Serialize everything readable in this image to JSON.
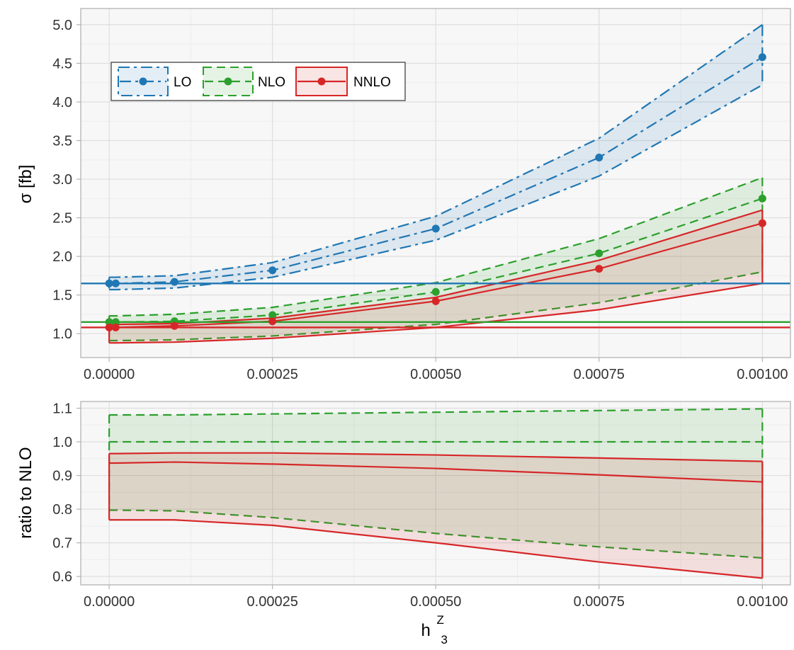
{
  "chart_data": [
    {
      "type": "line",
      "panel": "top",
      "ylabel": "σ [fb]",
      "xlim": [
        -4.35e-05,
        0.001043
      ],
      "ylim": [
        0.69,
        5.21
      ],
      "x_ticks": [
        0.0,
        0.00025,
        0.0005,
        0.00075,
        0.001
      ],
      "x_tick_labels": [
        "0.00000",
        "0.00025",
        "0.00050",
        "0.00075",
        "0.00100"
      ],
      "y_ticks": [
        1.0,
        1.5,
        2.0,
        2.5,
        3.0,
        3.5,
        4.0,
        4.5,
        5.0
      ],
      "y_tick_labels": [
        "1.0",
        "1.5",
        "2.0",
        "2.5",
        "3.0",
        "3.5",
        "4.0",
        "4.5",
        "5.0"
      ],
      "grid": true,
      "legend": {
        "position": "top-left",
        "entries": [
          "LO",
          "NLO",
          "NNLO"
        ]
      },
      "x": [
        0.0,
        1e-05,
        0.0001,
        0.00025,
        0.0005,
        0.00075,
        0.001
      ],
      "series": [
        {
          "name": "LO",
          "color": "#1f77b4",
          "line_style": "dashdot",
          "central": [
            1.65,
            1.65,
            1.67,
            1.82,
            2.36,
            3.28,
            4.58
          ],
          "band_upper": [
            1.73,
            1.73,
            1.75,
            1.92,
            2.52,
            3.53,
            5.0
          ],
          "band_lower": [
            1.57,
            1.57,
            1.59,
            1.73,
            2.21,
            3.04,
            4.22
          ],
          "reference_line": 1.65
        },
        {
          "name": "NLO",
          "color": "#2ca02c",
          "line_style": "dashed",
          "central": [
            1.15,
            1.15,
            1.16,
            1.24,
            1.54,
            2.04,
            2.75
          ],
          "band_upper": [
            1.23,
            1.23,
            1.25,
            1.34,
            1.66,
            2.23,
            3.02
          ],
          "band_lower": [
            0.91,
            0.91,
            0.92,
            0.97,
            1.12,
            1.4,
            1.8
          ],
          "reference_line": 1.15
        },
        {
          "name": "NNLO",
          "color": "#d62728",
          "line_style": "solid",
          "central": [
            1.08,
            1.08,
            1.1,
            1.16,
            1.42,
            1.84,
            2.43
          ],
          "band_upper": [
            1.12,
            1.12,
            1.13,
            1.2,
            1.47,
            1.95,
            2.6
          ],
          "band_lower": [
            0.88,
            0.88,
            0.89,
            0.94,
            1.08,
            1.31,
            1.65
          ],
          "reference_line": 1.08
        }
      ]
    },
    {
      "type": "line",
      "panel": "bottom",
      "xlabel": "h3Z",
      "xlabel_display": {
        "base": "h",
        "superscript": "Z",
        "subscript": "3"
      },
      "ylabel": "ratio to NLO",
      "xlim": [
        -4.35e-05,
        0.001043
      ],
      "ylim": [
        0.575,
        1.12
      ],
      "x_ticks": [
        0.0,
        0.00025,
        0.0005,
        0.00075,
        0.001
      ],
      "x_tick_labels": [
        "0.00000",
        "0.00025",
        "0.00050",
        "0.00075",
        "0.00100"
      ],
      "y_ticks": [
        0.6,
        0.7,
        0.8,
        0.9,
        1.0,
        1.1
      ],
      "y_tick_labels": [
        "0.6",
        "0.7",
        "0.8",
        "0.9",
        "1.0",
        "1.1"
      ],
      "grid": true,
      "x": [
        0.0,
        1e-05,
        0.0001,
        0.00025,
        0.0005,
        0.00075,
        0.001
      ],
      "series": [
        {
          "name": "NLO",
          "color": "#2ca02c",
          "line_style": "dashed",
          "central": [
            1.0,
            1.0,
            1.0,
            1.0,
            1.0,
            1.0,
            1.0
          ],
          "band_upper": [
            1.08,
            1.08,
            1.08,
            1.083,
            1.088,
            1.093,
            1.098
          ],
          "band_lower": [
            0.797,
            0.797,
            0.795,
            0.775,
            0.728,
            0.688,
            0.655
          ]
        },
        {
          "name": "NNLO",
          "color": "#d62728",
          "line_style": "solid",
          "central": [
            0.937,
            0.937,
            0.94,
            0.934,
            0.921,
            0.902,
            0.881
          ],
          "band_upper": [
            0.965,
            0.965,
            0.967,
            0.967,
            0.961,
            0.952,
            0.942
          ],
          "band_lower": [
            0.768,
            0.768,
            0.768,
            0.752,
            0.7,
            0.643,
            0.595
          ]
        }
      ]
    }
  ]
}
